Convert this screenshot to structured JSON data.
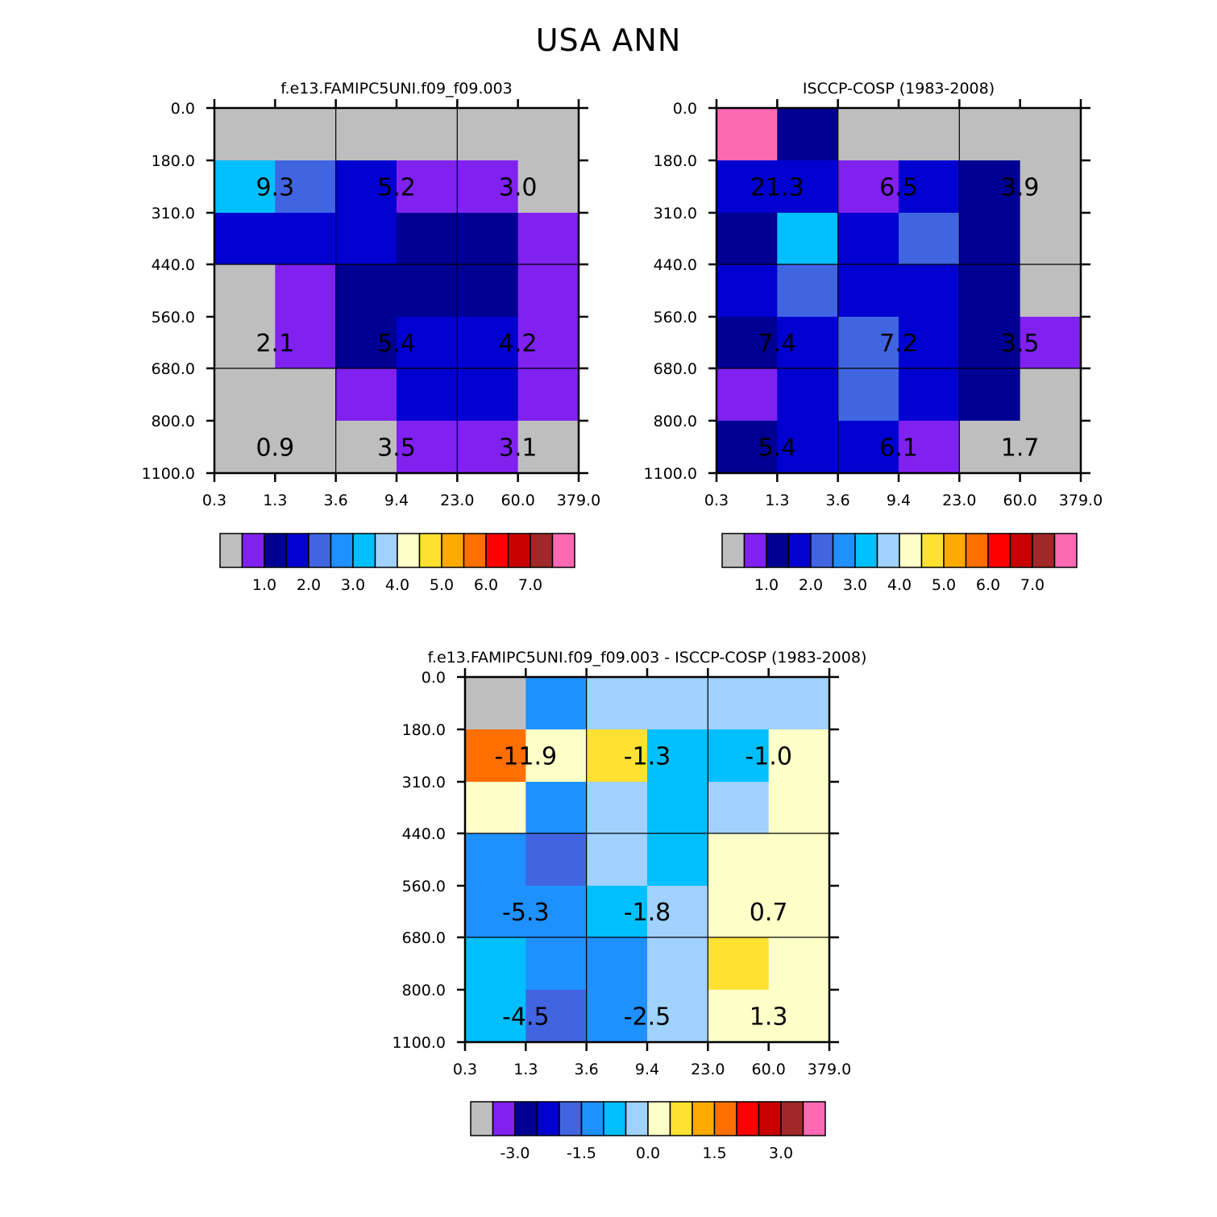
{
  "figure_title": "USA ANN",
  "palette": [
    "#bebebe",
    "#8021f0",
    "#000092",
    "#0000d1",
    "#4165e1",
    "#1e90ff",
    "#00bfff",
    "#a0d1ff",
    "#ffffc8",
    "#ffe132",
    "#ffaa00",
    "#ff6e00",
    "#ff0000",
    "#c80000",
    "#a02828",
    "#ff69b4"
  ],
  "chart_data": [
    {
      "type": "heatmap",
      "title": "f.e13.FAMIPC5UNI.f09_f09.003",
      "x_tick_labels": [
        "0.3",
        "1.3",
        "3.6",
        "9.4",
        "23.0",
        "60.0",
        "379.0"
      ],
      "y_tick_labels": [
        "0.0",
        "180.0",
        "310.0",
        "440.0",
        "560.0",
        "680.0",
        "800.0",
        "1100.0"
      ],
      "cell_color_index": [
        [
          0,
          0,
          0,
          0,
          0,
          0
        ],
        [
          6,
          4,
          3,
          1,
          1,
          0
        ],
        [
          3,
          3,
          3,
          2,
          2,
          1
        ],
        [
          0,
          1,
          2,
          2,
          2,
          1
        ],
        [
          0,
          1,
          2,
          3,
          3,
          1
        ],
        [
          0,
          0,
          1,
          3,
          3,
          1
        ],
        [
          0,
          0,
          0,
          1,
          1,
          0
        ]
      ],
      "group_labels": [
        "9.3",
        "5.2",
        "3.0",
        "2.1",
        "5.4",
        "4.2",
        "0.9",
        "3.5",
        "3.1"
      ],
      "colorbar_labels": [
        "1.0",
        "2.0",
        "3.0",
        "4.0",
        "5.0",
        "6.0",
        "7.0"
      ]
    },
    {
      "type": "heatmap",
      "title": "ISCCP-COSP (1983-2008)",
      "x_tick_labels": [
        "0.3",
        "1.3",
        "3.6",
        "9.4",
        "23.0",
        "60.0",
        "379.0"
      ],
      "y_tick_labels": [
        "0.0",
        "180.0",
        "310.0",
        "440.0",
        "560.0",
        "680.0",
        "800.0",
        "1100.0"
      ],
      "cell_color_index": [
        [
          15,
          2,
          0,
          0,
          0,
          0
        ],
        [
          3,
          3,
          1,
          3,
          2,
          0
        ],
        [
          2,
          6,
          3,
          4,
          2,
          0
        ],
        [
          3,
          4,
          3,
          3,
          2,
          0
        ],
        [
          2,
          3,
          4,
          3,
          2,
          1
        ],
        [
          1,
          3,
          4,
          3,
          2,
          0
        ],
        [
          2,
          3,
          3,
          1,
          0,
          0
        ]
      ],
      "group_labels": [
        "21.3",
        "6.5",
        "3.9",
        "7.4",
        "7.2",
        "3.5",
        "5.4",
        "6.1",
        "1.7"
      ],
      "colorbar_labels": [
        "1.0",
        "2.0",
        "3.0",
        "4.0",
        "5.0",
        "6.0",
        "7.0"
      ]
    },
    {
      "type": "heatmap",
      "title": "f.e13.FAMIPC5UNI.f09_f09.003 - ISCCP-COSP (1983-2008)",
      "x_tick_labels": [
        "0.3",
        "1.3",
        "3.6",
        "9.4",
        "23.0",
        "60.0",
        "379.0"
      ],
      "y_tick_labels": [
        "0.0",
        "180.0",
        "310.0",
        "440.0",
        "560.0",
        "680.0",
        "800.0",
        "1100.0"
      ],
      "cell_color_index": [
        [
          0,
          5,
          7,
          7,
          7,
          7
        ],
        [
          11,
          8,
          9,
          6,
          6,
          8
        ],
        [
          8,
          5,
          7,
          6,
          7,
          8
        ],
        [
          5,
          4,
          7,
          6,
          8,
          8
        ],
        [
          5,
          5,
          6,
          7,
          8,
          8
        ],
        [
          6,
          5,
          5,
          7,
          9,
          8
        ],
        [
          6,
          4,
          5,
          7,
          8,
          8
        ]
      ],
      "group_labels": [
        "-11.9",
        "-1.3",
        "-1.0",
        "-5.3",
        "-1.8",
        "0.7",
        "-4.5",
        "-2.5",
        "1.3"
      ],
      "colorbar_labels": [
        "-3.0",
        "-1.5",
        "0.0",
        "1.5",
        "3.0"
      ]
    }
  ]
}
